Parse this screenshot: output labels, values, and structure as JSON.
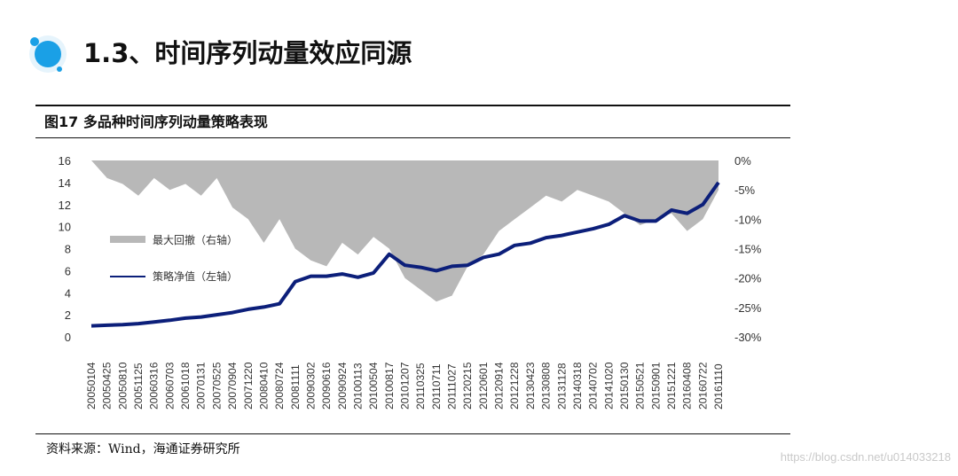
{
  "page": {
    "title": "1.3、时间序列动量效应同源",
    "figure_title": "图17 多品种时间序列动量策略表现",
    "source": "资料来源：Wind，海通证券研究所",
    "watermark": "https://blog.csdn.net/u014033218"
  },
  "colors": {
    "nav_line": "#0c1f7a",
    "drawdown_area": "#b8b8b8",
    "logo_blue": "#1aa0e6"
  },
  "icons": {
    "logo": "circle-logo-icon"
  },
  "chart_data": {
    "type": "line+area",
    "left_axis": {
      "ticks": [
        0,
        2,
        4,
        6,
        8,
        10,
        12,
        14,
        16
      ],
      "range": [
        0,
        16
      ]
    },
    "right_axis": {
      "ticks": [
        "0%",
        "-5%",
        "-10%",
        "-15%",
        "-20%",
        "-25%",
        "-30%"
      ],
      "range": [
        -30,
        0
      ]
    },
    "x_tick_labels": [
      "20050104",
      "20050425",
      "20050810",
      "20051125",
      "20060316",
      "20060703",
      "20061018",
      "20070131",
      "20070525",
      "20070904",
      "20071220",
      "20080410",
      "20080724",
      "20081111",
      "20090302",
      "20090616",
      "20090924",
      "20100113",
      "20100504",
      "20100817",
      "20101207",
      "20110325",
      "20110711",
      "20111027",
      "20120215",
      "20120601",
      "20120914",
      "20121228",
      "20130423",
      "20130808",
      "20131128",
      "20140318",
      "20140702",
      "20141020",
      "20150130",
      "20150521",
      "20150901",
      "20151221",
      "20160408",
      "20160722",
      "20161110"
    ],
    "legend": [
      {
        "label": "最大回撤（右轴）",
        "kind": "area"
      },
      {
        "label": "策略净值（左轴）",
        "kind": "line"
      }
    ],
    "series": [
      {
        "name": "策略净值（左轴）",
        "axis": "left",
        "values": [
          1.0,
          1.05,
          1.1,
          1.2,
          1.35,
          1.5,
          1.7,
          1.8,
          2.0,
          2.2,
          2.5,
          2.7,
          3.0,
          5.0,
          5.5,
          5.5,
          5.7,
          5.4,
          5.8,
          7.5,
          6.5,
          6.3,
          6.0,
          6.4,
          6.5,
          7.2,
          7.5,
          8.3,
          8.5,
          9.0,
          9.2,
          9.5,
          9.8,
          10.2,
          11.0,
          10.5,
          10.5,
          11.5,
          11.2,
          12.0,
          14.0
        ]
      },
      {
        "name": "最大回撤（右轴）",
        "axis": "right",
        "values": [
          0,
          -3,
          -4,
          -6,
          -3,
          -5,
          -4,
          -6,
          -3,
          -8,
          -10,
          -14,
          -10,
          -15,
          -17,
          -18,
          -14,
          -16,
          -13,
          -15,
          -20,
          -22,
          -24,
          -23,
          -18,
          -16,
          -12,
          -10,
          -8,
          -6,
          -7,
          -5,
          -6,
          -7,
          -9,
          -11,
          -10,
          -9,
          -12,
          -10,
          -5
        ]
      }
    ]
  }
}
